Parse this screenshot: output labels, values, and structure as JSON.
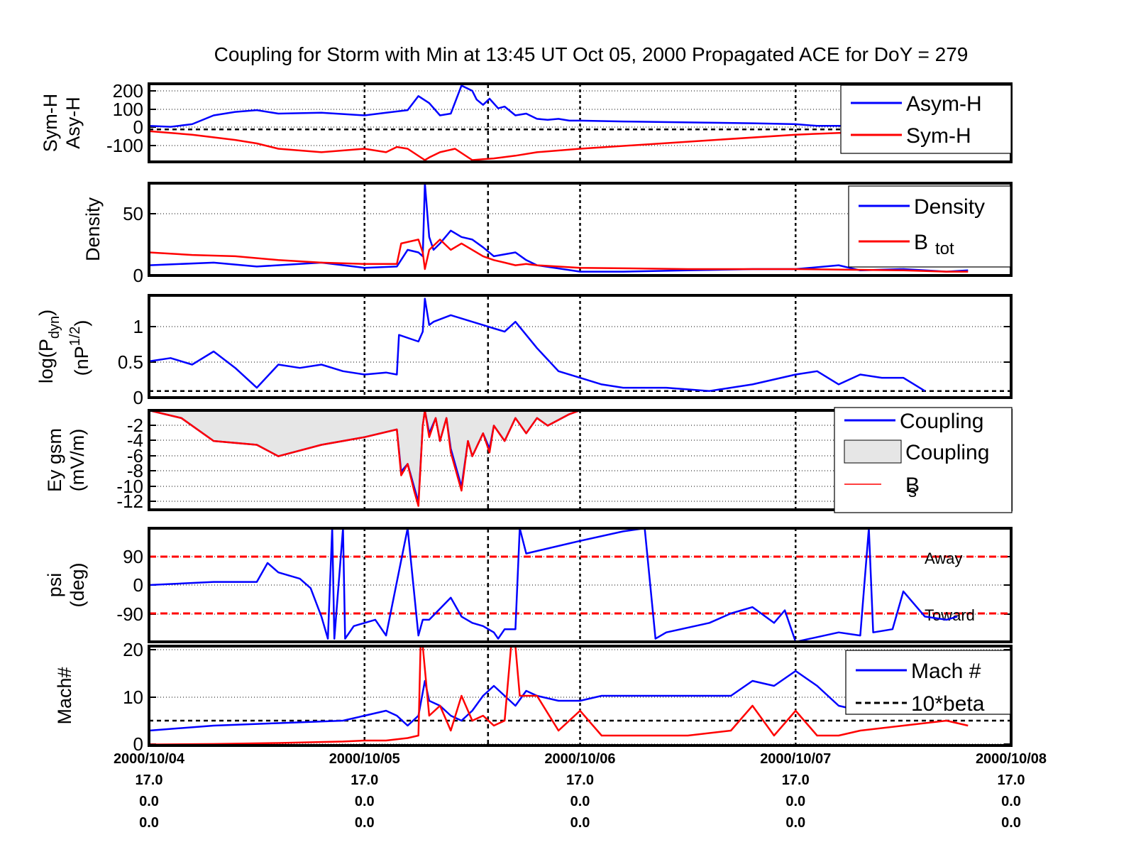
{
  "title": "Coupling for Storm with Min at 13:45 UT Oct 05, 2000  Propagated ACE for DoY = 279",
  "colors": {
    "blue": "#0000ff",
    "red": "#ff0000",
    "black": "#000000",
    "fill": "#e6e6e6"
  },
  "x_ticks": {
    "dates": [
      "2000/10/04",
      "2000/10/05",
      "2000/10/06",
      "2000/10/07",
      "2000/10/08"
    ],
    "row2": [
      "17.0",
      "17.0",
      "17.0",
      "17.0",
      "17.0"
    ],
    "row3": [
      "0.0",
      "0.0",
      "0.0",
      "0.0",
      "0.0"
    ],
    "row4": [
      "0.0",
      "0.0",
      "0.0",
      "0.0",
      "0.0"
    ]
  },
  "chart_data": [
    {
      "type": "line",
      "ylabel": [
        "Sym-H",
        "Asy-H"
      ],
      "yticks": [
        "200",
        "100",
        "0",
        "-100"
      ],
      "ylim": [
        -185,
        260
      ],
      "legend": [
        "Asym-H",
        "Sym-H"
      ],
      "series": [
        {
          "name": "Asym-H",
          "color": "blue",
          "x": [
            0,
            0.1,
            0.2,
            0.3,
            0.4,
            0.5,
            0.6,
            0.8,
            1.0,
            1.1,
            1.2,
            1.25,
            1.3,
            1.35,
            1.4,
            1.45,
            1.5,
            1.52,
            1.55,
            1.58,
            1.62,
            1.65,
            1.7,
            1.75,
            1.8,
            1.85,
            1.9,
            1.95,
            2.0,
            2.2,
            2.5,
            2.8,
            3.0,
            3.1,
            3.2,
            3.35,
            3.5,
            3.6,
            3.75,
            3.9,
            4.0
          ],
          "y": [
            20,
            15,
            30,
            80,
            100,
            110,
            90,
            95,
            80,
            95,
            110,
            190,
            150,
            80,
            90,
            250,
            220,
            170,
            140,
            175,
            120,
            130,
            80,
            90,
            60,
            55,
            60,
            50,
            50,
            45,
            40,
            35,
            30,
            20,
            20,
            15,
            10,
            10,
            15,
            15,
            15
          ]
        },
        {
          "name": "Sym-H",
          "color": "red",
          "x": [
            0,
            0.2,
            0.4,
            0.5,
            0.6,
            0.8,
            1.0,
            1.1,
            1.15,
            1.2,
            1.28,
            1.3,
            1.35,
            1.42,
            1.5,
            1.55,
            1.6,
            1.7,
            1.8,
            2.0,
            2.5,
            3.0,
            3.2,
            3.5,
            3.75,
            4.0
          ],
          "y": [
            -10,
            -30,
            -60,
            -80,
            -110,
            -130,
            -110,
            -130,
            -100,
            -110,
            -175,
            -160,
            -130,
            -110,
            -175,
            -170,
            -165,
            -150,
            -130,
            -110,
            -70,
            -30,
            -20,
            -10,
            -5,
            0
          ]
        }
      ]
    },
    {
      "type": "line",
      "ylabel": [
        "Density"
      ],
      "yticks": [
        "50",
        "0"
      ],
      "ylim": [
        0,
        72
      ],
      "legend": [
        "Density",
        "B",
        "tot"
      ],
      "series": [
        {
          "name": "Density",
          "color": "blue",
          "x": [
            0,
            0.3,
            0.5,
            0.8,
            1.0,
            1.15,
            1.2,
            1.25,
            1.27,
            1.28,
            1.3,
            1.32,
            1.35,
            1.4,
            1.45,
            1.5,
            1.55,
            1.6,
            1.7,
            1.75,
            1.8,
            2.0,
            2.2,
            2.5,
            2.8,
            3.0,
            3.2,
            3.3,
            3.5,
            3.6,
            3.7,
            3.8
          ],
          "y": [
            8,
            10,
            7,
            10,
            6,
            7,
            20,
            18,
            15,
            72,
            30,
            20,
            25,
            35,
            30,
            28,
            22,
            15,
            18,
            12,
            8,
            3,
            3,
            4,
            5,
            5,
            8,
            4,
            5,
            4,
            3,
            4
          ]
        },
        {
          "name": "B_tot",
          "color": "red",
          "x": [
            0,
            0.2,
            0.4,
            0.6,
            0.8,
            1.0,
            1.15,
            1.17,
            1.25,
            1.27,
            1.28,
            1.3,
            1.35,
            1.4,
            1.45,
            1.55,
            1.6,
            1.65,
            1.7,
            1.75,
            1.8,
            2.0,
            2.5,
            3.0,
            3.5,
            3.7,
            3.8
          ],
          "y": [
            18,
            16,
            15,
            12,
            10,
            9,
            9,
            25,
            28,
            18,
            5,
            20,
            28,
            20,
            25,
            15,
            12,
            10,
            8,
            9,
            8,
            6,
            5,
            5,
            4,
            3,
            3
          ]
        }
      ]
    },
    {
      "type": "line",
      "ylabel": [
        "log(P",
        "dyn",
        ")",
        "(nP",
        "1/2",
        ")"
      ],
      "yticks": [
        "1",
        "0.5",
        "0"
      ],
      "ylim": [
        -0.1,
        1.45
      ],
      "legend": [],
      "series": [
        {
          "name": "log(Pdyn)",
          "color": "blue",
          "x": [
            0,
            0.1,
            0.2,
            0.3,
            0.4,
            0.5,
            0.6,
            0.7,
            0.8,
            0.9,
            1.0,
            1.1,
            1.15,
            1.16,
            1.25,
            1.27,
            1.28,
            1.3,
            1.32,
            1.4,
            1.5,
            1.55,
            1.6,
            1.65,
            1.7,
            1.75,
            1.8,
            1.9,
            2.0,
            2.1,
            2.2,
            2.4,
            2.6,
            2.8,
            3.0,
            3.1,
            3.2,
            3.3,
            3.4,
            3.5,
            3.6
          ],
          "y": [
            0.45,
            0.5,
            0.4,
            0.6,
            0.35,
            0.05,
            0.4,
            0.35,
            0.4,
            0.3,
            0.25,
            0.28,
            0.25,
            0.85,
            0.75,
            0.9,
            1.4,
            1.0,
            1.05,
            1.15,
            1.05,
            1.0,
            0.95,
            0.9,
            1.05,
            0.85,
            0.65,
            0.3,
            0.2,
            0.1,
            0.05,
            0.05,
            0.0,
            0.1,
            0.25,
            0.3,
            0.1,
            0.25,
            0.2,
            0.2,
            0.0
          ]
        }
      ]
    },
    {
      "type": "area",
      "ylabel": [
        "Ey gsm",
        "(mV/m)"
      ],
      "yticks": [
        "-2",
        "-4",
        "-6",
        "-8",
        "-10",
        "-12"
      ],
      "ylim": [
        -13,
        0
      ],
      "legend": [
        "Coupling",
        "Coupling",
        "B",
        "s"
      ],
      "series": [
        {
          "name": "Coupling",
          "color": "blue",
          "x": [
            0,
            0.15,
            0.3,
            0.5,
            0.6,
            0.8,
            1.0,
            1.15,
            1.17,
            1.2,
            1.23,
            1.25,
            1.27,
            1.28,
            1.3,
            1.33,
            1.35,
            1.38,
            1.4,
            1.45,
            1.48,
            1.5,
            1.55,
            1.58,
            1.6,
            1.65,
            1.7,
            1.75,
            1.8,
            1.85,
            1.95,
            2.0
          ],
          "y": [
            0,
            -1,
            -4,
            -4.5,
            -6,
            -4.5,
            -3.5,
            -2.5,
            -8,
            -7,
            -10,
            -12,
            -2,
            0,
            -3,
            -1,
            -4,
            -1,
            -5,
            -10,
            -4,
            -6,
            -3,
            -5,
            -2,
            -4,
            -1,
            -3,
            -1,
            -2,
            -0.5,
            0
          ]
        },
        {
          "name": "B_s",
          "color": "red",
          "x": [
            0,
            0.15,
            0.3,
            0.5,
            0.6,
            0.8,
            1.0,
            1.15,
            1.17,
            1.2,
            1.23,
            1.25,
            1.27,
            1.28,
            1.3,
            1.33,
            1.35,
            1.38,
            1.4,
            1.45,
            1.48,
            1.5,
            1.55,
            1.58,
            1.6,
            1.65,
            1.7,
            1.75,
            1.8,
            1.85,
            1.95,
            2.0
          ],
          "y": [
            0,
            -1,
            -4,
            -4.5,
            -6,
            -4.5,
            -3.5,
            -2.5,
            -8.5,
            -7,
            -10.5,
            -12.5,
            -2,
            0,
            -3.5,
            -1,
            -4,
            -1,
            -5.5,
            -10.5,
            -4,
            -6,
            -3,
            -5.5,
            -2,
            -4,
            -1,
            -3,
            -1,
            -2,
            -0.5,
            0
          ]
        }
      ]
    },
    {
      "type": "line",
      "ylabel": [
        "psi",
        "(deg)"
      ],
      "yticks": [
        "90",
        "0",
        "-90"
      ],
      "ylim": [
        -180,
        180
      ],
      "hlines": [
        {
          "y": 90,
          "label": "Away"
        },
        {
          "y": -90,
          "label": "Toward"
        }
      ],
      "legend": [],
      "series": [
        {
          "name": "psi",
          "color": "blue",
          "x": [
            0,
            0.3,
            0.5,
            0.55,
            0.6,
            0.7,
            0.75,
            0.8,
            0.83,
            0.85,
            0.86,
            0.9,
            0.91,
            0.95,
            1.0,
            1.05,
            1.1,
            1.2,
            1.25,
            1.27,
            1.3,
            1.4,
            1.45,
            1.5,
            1.55,
            1.6,
            1.62,
            1.65,
            1.7,
            1.72,
            1.75,
            2.0,
            2.2,
            2.3,
            2.35,
            2.4,
            2.6,
            2.7,
            2.8,
            2.9,
            2.95,
            3.0,
            3.2,
            3.3,
            3.34,
            3.36,
            3.45,
            3.5,
            3.55,
            3.6,
            3.7,
            3.75
          ],
          "y": [
            0,
            10,
            10,
            70,
            40,
            20,
            -10,
            -100,
            -170,
            180,
            -170,
            180,
            -170,
            -130,
            -120,
            -110,
            -160,
            180,
            -160,
            -110,
            -110,
            -40,
            -100,
            -120,
            -130,
            -150,
            -170,
            -140,
            -140,
            180,
            100,
            140,
            170,
            180,
            -170,
            -150,
            -120,
            -90,
            -70,
            -120,
            -80,
            -180,
            -150,
            -160,
            180,
            -150,
            -140,
            -20,
            -60,
            -100,
            -110,
            -100
          ]
        }
      ]
    },
    {
      "type": "line",
      "ylabel": [
        "Mach#"
      ],
      "yticks": [
        "20",
        "10",
        "0"
      ],
      "ylim": [
        0,
        20
      ],
      "legend": [
        "Mach #",
        "10*beta"
      ],
      "series": [
        {
          "name": "Mach #",
          "color": "blue",
          "x": [
            0,
            0.3,
            0.6,
            0.9,
            1.0,
            1.1,
            1.15,
            1.2,
            1.25,
            1.28,
            1.3,
            1.35,
            1.4,
            1.45,
            1.5,
            1.55,
            1.6,
            1.65,
            1.7,
            1.75,
            1.8,
            1.9,
            2.0,
            2.1,
            2.3,
            2.5,
            2.7,
            2.8,
            2.9,
            3.0,
            3.1,
            3.2,
            3.3,
            3.5,
            3.7,
            3.8
          ],
          "y": [
            3,
            4,
            4.5,
            5,
            6,
            7,
            6,
            4,
            6,
            13,
            9,
            8,
            6,
            5,
            7,
            10,
            12,
            10,
            8,
            11,
            10,
            9,
            9,
            10,
            10,
            10,
            10,
            13,
            12,
            15,
            12,
            8,
            7,
            7,
            8,
            7
          ]
        },
        {
          "name": "10*beta",
          "color": "red",
          "x": [
            0,
            0.3,
            0.6,
            0.9,
            1.0,
            1.1,
            1.2,
            1.25,
            1.26,
            1.27,
            1.3,
            1.35,
            1.4,
            1.45,
            1.5,
            1.55,
            1.6,
            1.65,
            1.68,
            1.7,
            1.72,
            1.75,
            1.8,
            1.9,
            2.0,
            2.1,
            2.3,
            2.5,
            2.7,
            2.8,
            2.9,
            3.0,
            3.1,
            3.2,
            3.3,
            3.5,
            3.7,
            3.8
          ],
          "y": [
            0.2,
            0.3,
            0.5,
            0.8,
            1,
            1,
            1.5,
            2,
            20,
            20,
            6,
            8,
            3,
            10,
            5,
            6,
            4,
            5,
            20,
            20,
            10,
            10,
            10,
            3,
            7,
            2,
            2,
            2,
            3,
            8,
            2,
            7,
            2,
            2,
            3,
            4,
            5,
            4
          ]
        }
      ]
    }
  ]
}
